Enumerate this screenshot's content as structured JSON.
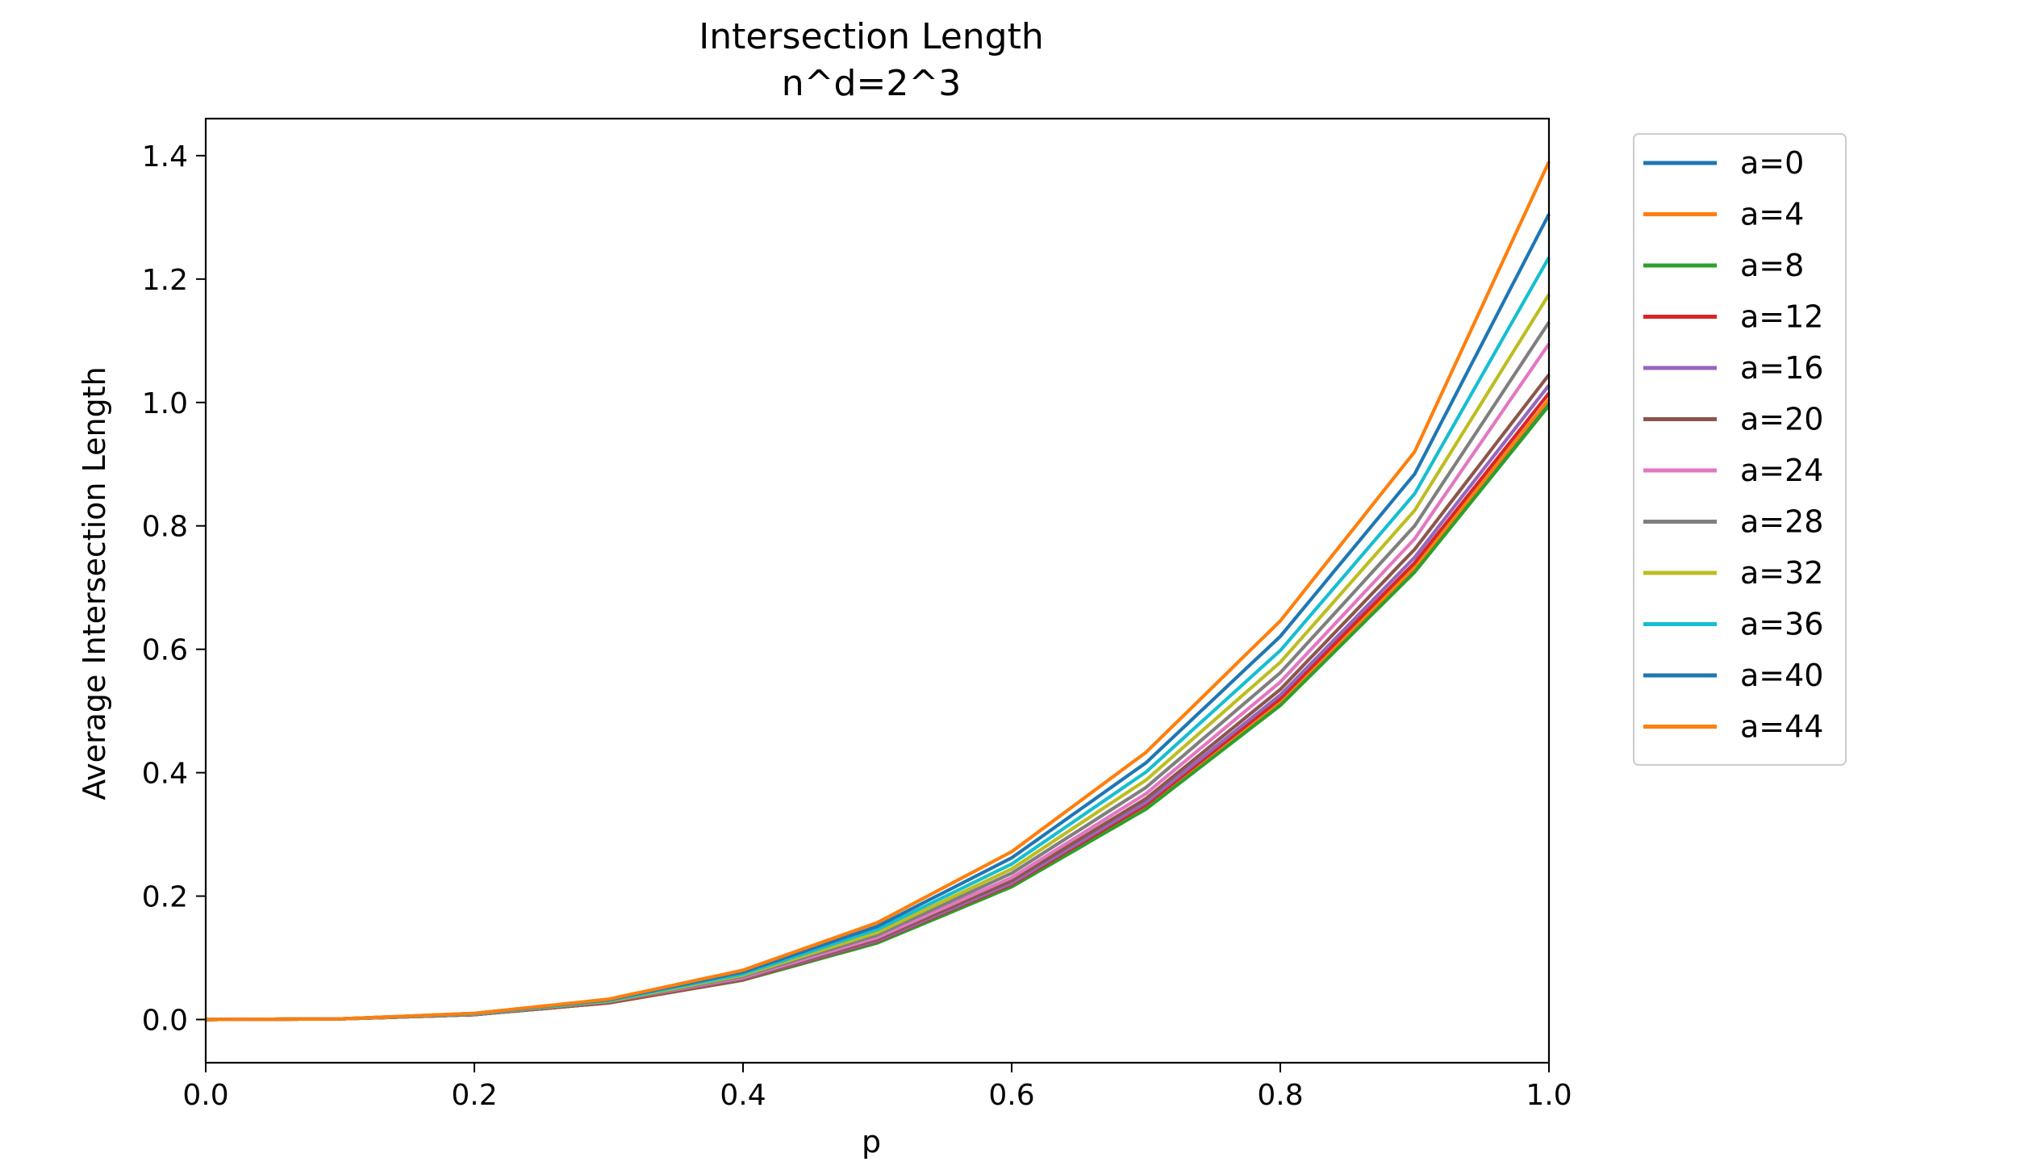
{
  "chart_data": {
    "type": "line",
    "title": "Intersection Length",
    "subtitle": "n^d=2^3",
    "xlabel": "p",
    "ylabel": "Average Intersection Length",
    "xlim": [
      0.0,
      1.0
    ],
    "ylim": [
      -0.07,
      1.46
    ],
    "xticks": [
      "0.0",
      "0.2",
      "0.4",
      "0.6",
      "0.8",
      "1.0"
    ],
    "yticks": [
      "0.0",
      "0.2",
      "0.4",
      "0.6",
      "0.8",
      "1.0",
      "1.2",
      "1.4"
    ],
    "grid": false,
    "legend_position": "outside-right",
    "curve_shape": "cubic in p",
    "x": [
      0.0,
      0.1,
      0.2,
      0.3,
      0.4,
      0.5,
      0.6,
      0.7,
      0.8,
      0.9,
      1.0
    ],
    "series": [
      {
        "name": "a=0",
        "color": "#1f77b4",
        "values": [
          0.0,
          0.001,
          0.008,
          0.027,
          0.064,
          0.125,
          0.216,
          0.343,
          0.512,
          0.729,
          1.0
        ]
      },
      {
        "name": "a=4",
        "color": "#ff7f0e",
        "values": [
          0.0,
          0.001,
          0.008,
          0.027,
          0.064,
          0.126,
          0.217,
          0.345,
          0.515,
          0.733,
          1.005
        ]
      },
      {
        "name": "a=8",
        "color": "#2ca02c",
        "values": [
          0.0,
          0.001,
          0.008,
          0.027,
          0.064,
          0.124,
          0.215,
          0.341,
          0.509,
          0.725,
          0.995
        ]
      },
      {
        "name": "a=12",
        "color": "#d62728",
        "values": [
          0.0,
          0.001,
          0.008,
          0.027,
          0.065,
          0.127,
          0.219,
          0.348,
          0.52,
          0.74,
          1.015
        ]
      },
      {
        "name": "a=16",
        "color": "#9467bd",
        "values": [
          0.0,
          0.001,
          0.008,
          0.028,
          0.066,
          0.128,
          0.221,
          0.352,
          0.526,
          0.749,
          1.028
        ]
      },
      {
        "name": "a=20",
        "color": "#8c564b",
        "values": [
          0.0,
          0.001,
          0.008,
          0.028,
          0.067,
          0.13,
          0.225,
          0.358,
          0.535,
          0.762,
          1.045
        ]
      },
      {
        "name": "a=24",
        "color": "#e377c2",
        "values": [
          0.0,
          0.001,
          0.009,
          0.029,
          0.068,
          0.133,
          0.23,
          0.366,
          0.547,
          0.779,
          1.095
        ]
      },
      {
        "name": "a=28",
        "color": "#7f7f7f",
        "values": [
          0.0,
          0.001,
          0.009,
          0.029,
          0.07,
          0.137,
          0.237,
          0.376,
          0.562,
          0.8,
          1.13
        ]
      },
      {
        "name": "a=32",
        "color": "#bcbd22",
        "values": [
          0.0,
          0.001,
          0.009,
          0.03,
          0.072,
          0.141,
          0.244,
          0.388,
          0.579,
          0.825,
          1.175
        ]
      },
      {
        "name": "a=36",
        "color": "#17becf",
        "values": [
          0.0,
          0.001,
          0.009,
          0.031,
          0.074,
          0.146,
          0.252,
          0.401,
          0.598,
          0.852,
          1.235
        ]
      },
      {
        "name": "a=40",
        "color": "#1f77b4",
        "values": [
          0.0,
          0.001,
          0.01,
          0.032,
          0.077,
          0.151,
          0.262,
          0.416,
          0.621,
          0.884,
          1.305
        ]
      },
      {
        "name": "a=44",
        "color": "#ff7f0e",
        "values": [
          0.0,
          0.001,
          0.01,
          0.033,
          0.08,
          0.157,
          0.272,
          0.433,
          0.646,
          0.92,
          1.39
        ]
      }
    ]
  }
}
